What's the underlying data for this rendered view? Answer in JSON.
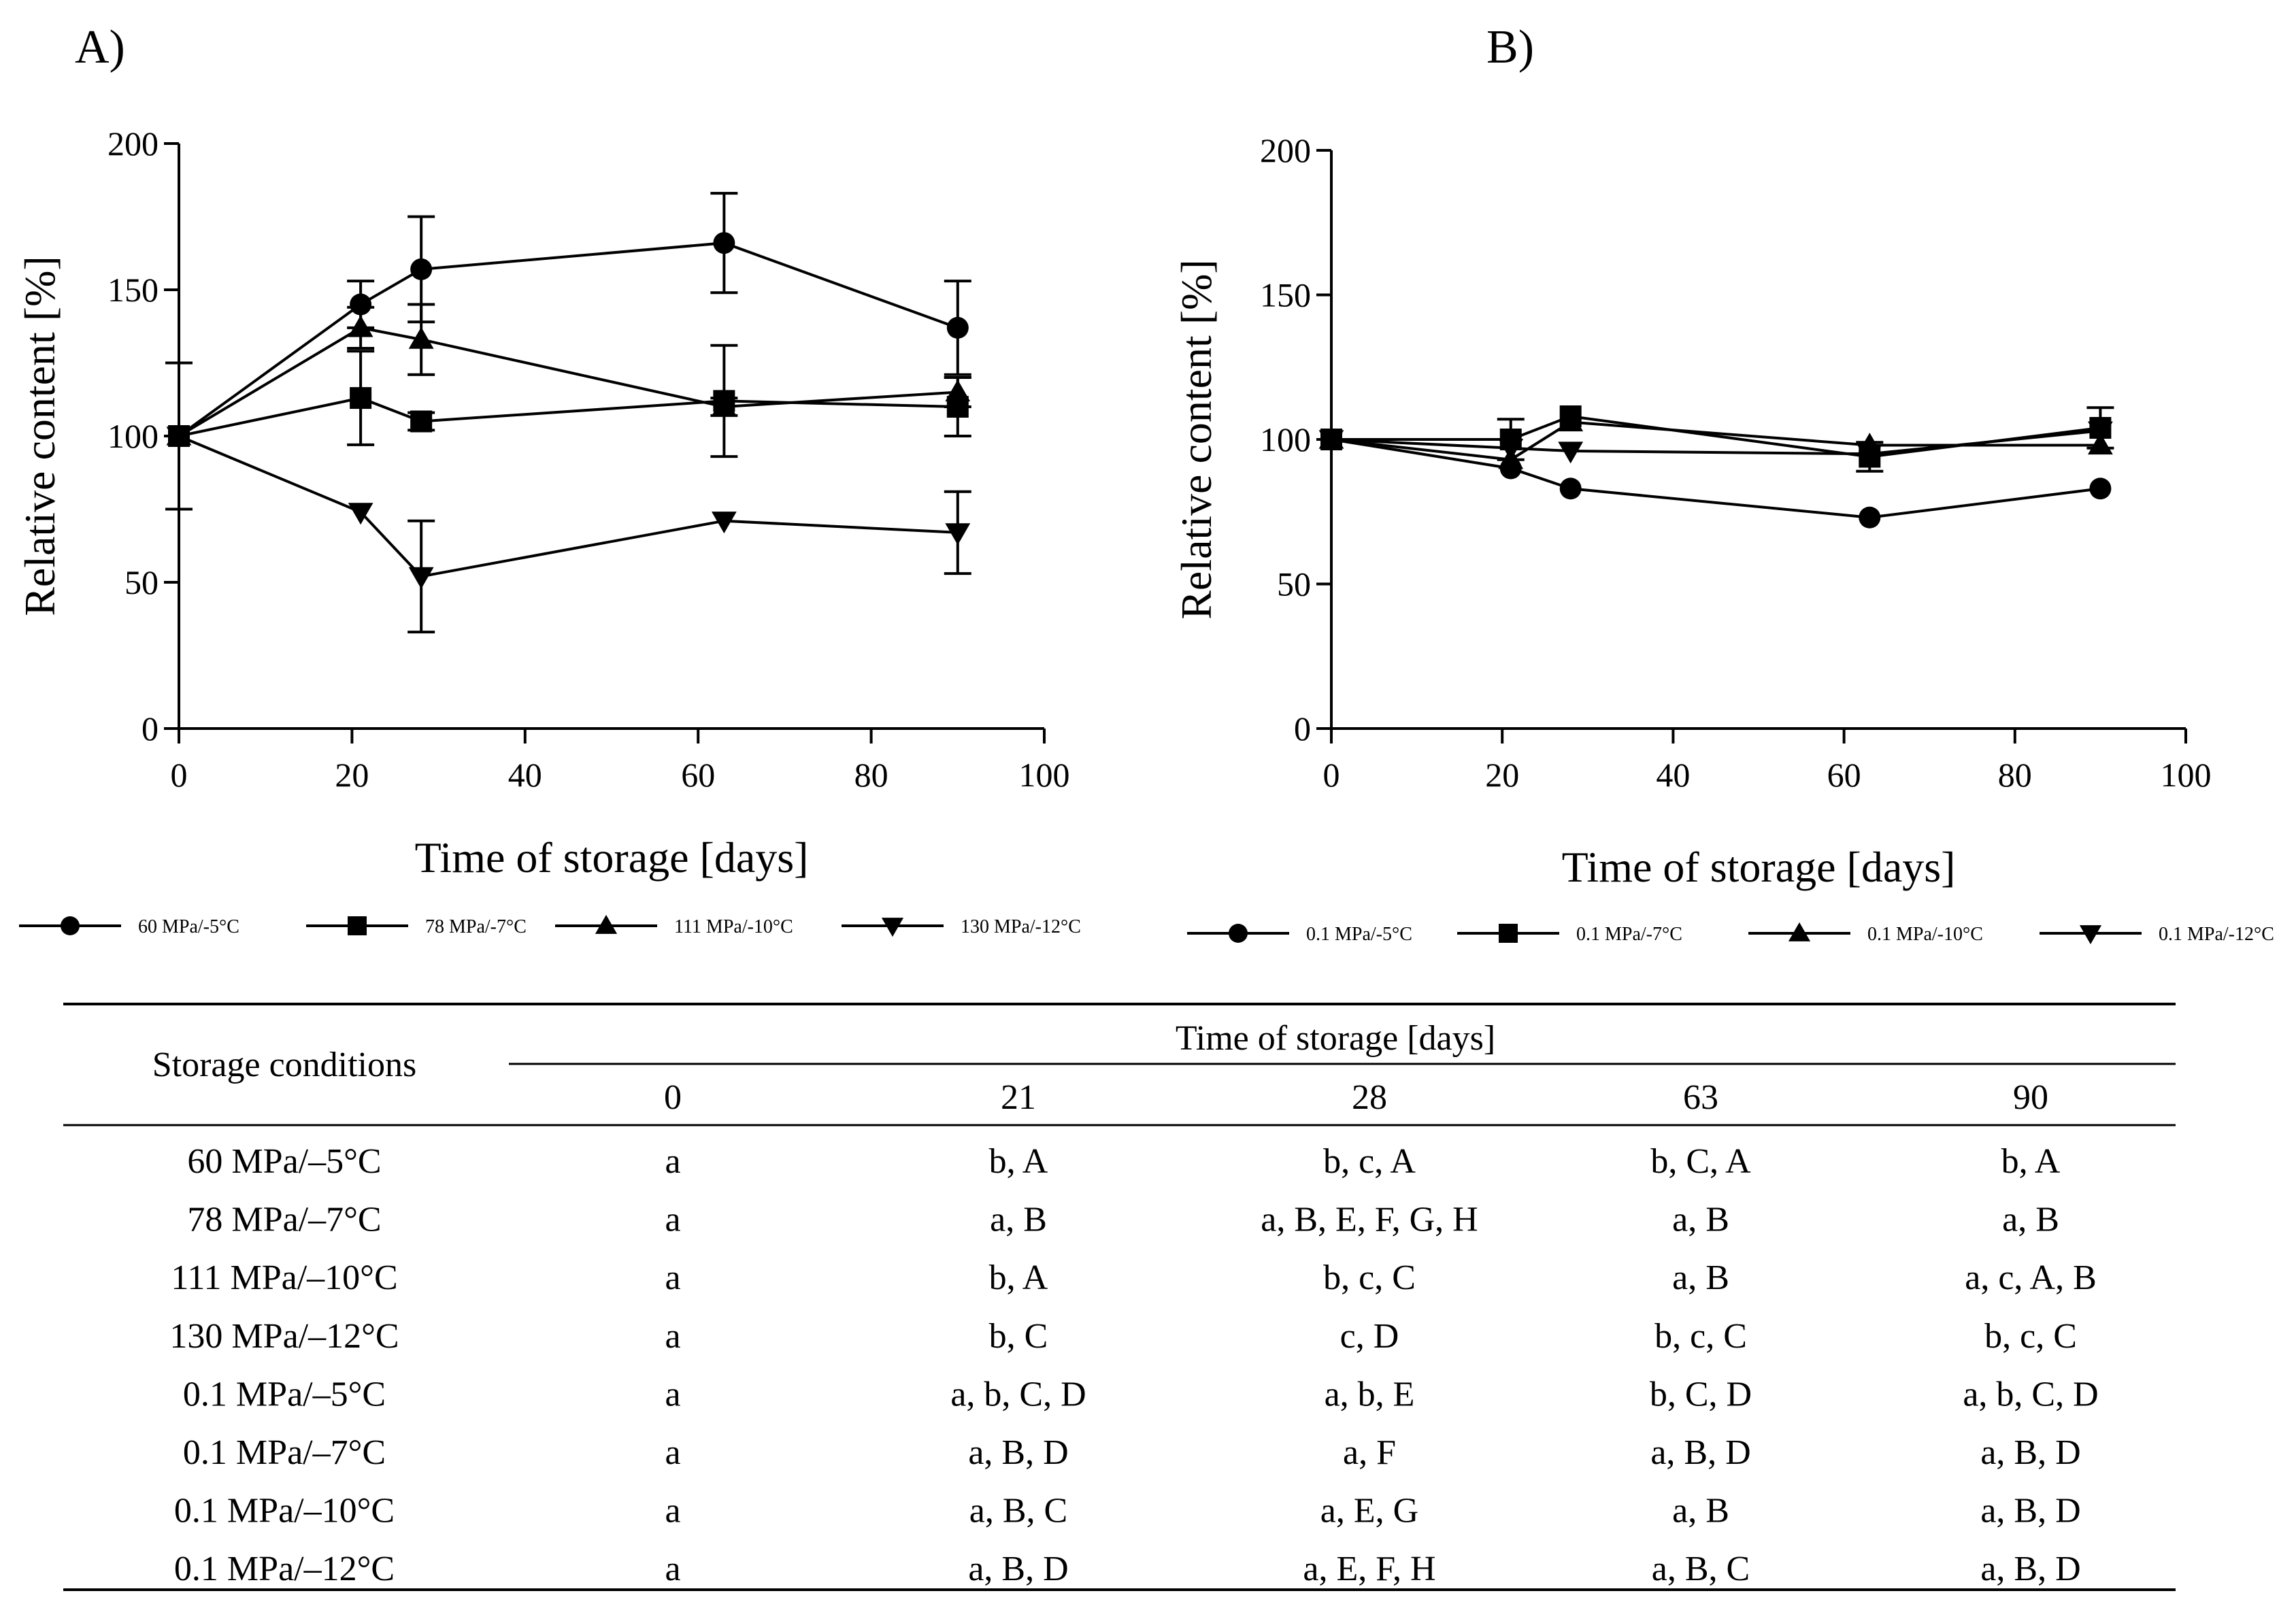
{
  "chart_data": [
    {
      "type": "line",
      "panel_label": "A)",
      "xlabel": "Time of storage [days]",
      "ylabel": "Relative content [%]",
      "xlim": [
        0,
        100
      ],
      "ylim": [
        0,
        200
      ],
      "xticks": [
        "0",
        "20",
        "40",
        "60",
        "80",
        "100"
      ],
      "yticks": [
        "0",
        "50",
        "100",
        "150",
        "200"
      ],
      "legend_position": "below",
      "x": [
        0,
        21,
        28,
        63,
        90
      ],
      "series": [
        {
          "name": "60 MPa/-5°C",
          "marker": "circle",
          "values": [
            100,
            145,
            157,
            166,
            137
          ],
          "errors": [
            25,
            8,
            18,
            17,
            16
          ]
        },
        {
          "name": "78 MPa/-7°C",
          "marker": "square",
          "values": [
            100,
            113,
            105,
            112,
            110
          ],
          "errors": [
            25,
            16,
            3,
            19,
            10
          ]
        },
        {
          "name": "111 MPa/-10°C",
          "marker": "triangle-up",
          "values": [
            100,
            137,
            133,
            110,
            115
          ],
          "errors": [
            25,
            7,
            12,
            3,
            5
          ]
        },
        {
          "name": "130 MPa/-12°C",
          "marker": "triangle-down",
          "values": [
            100,
            74,
            52,
            71,
            67
          ],
          "errors": [
            25,
            0,
            19,
            0,
            14
          ]
        }
      ]
    },
    {
      "type": "line",
      "panel_label": "B)",
      "xlabel": "Time of storage [days]",
      "ylabel": "Relative content [%]",
      "xlim": [
        0,
        100
      ],
      "ylim": [
        0,
        200
      ],
      "xticks": [
        "0",
        "20",
        "40",
        "60",
        "80",
        "100"
      ],
      "yticks": [
        "0",
        "50",
        "100",
        "150",
        "200"
      ],
      "legend_position": "below",
      "x": [
        0,
        21,
        28,
        63,
        90
      ],
      "series": [
        {
          "name": "0.1 MPa/-5°C",
          "marker": "circle",
          "values": [
            100,
            90,
            83,
            73,
            83
          ],
          "errors": [
            0,
            0,
            0,
            0,
            0
          ]
        },
        {
          "name": "0.1 MPa/-7°C",
          "marker": "square",
          "values": [
            100,
            100,
            108,
            94,
            104
          ],
          "errors": [
            0,
            7,
            0,
            5,
            7
          ]
        },
        {
          "name": "0.1 MPa/-10°C",
          "marker": "triangle-up",
          "values": [
            100,
            93,
            106,
            98,
            98
          ],
          "errors": [
            0,
            0,
            0,
            0,
            0
          ]
        },
        {
          "name": "0.1 MPa/-12°C",
          "marker": "triangle-down",
          "values": [
            100,
            97,
            96,
            95,
            103
          ],
          "errors": [
            0,
            0,
            0,
            0,
            0
          ]
        }
      ]
    },
    {
      "type": "table",
      "row_header": "Storage conditions",
      "group_header": "Time of storage [days]",
      "columns": [
        "0",
        "21",
        "28",
        "63",
        "90"
      ],
      "rows": [
        {
          "condition": "60 MPa/–5°C",
          "cells": [
            "a",
            "b, A",
            "b, c, A",
            "b, C, A",
            "b, A"
          ]
        },
        {
          "condition": "78 MPa/–7°C",
          "cells": [
            "a",
            "a, B",
            "a, B, E, F, G, H",
            "a, B",
            "a, B"
          ]
        },
        {
          "condition": "111 MPa/–10°C",
          "cells": [
            "a",
            "b, A",
            "b, c, C",
            "a, B",
            "a, c, A, B"
          ]
        },
        {
          "condition": "130 MPa/–12°C",
          "cells": [
            "a",
            "b, C",
            "c, D",
            "b, c, C",
            "b, c, C"
          ]
        },
        {
          "condition": "0.1 MPa/–5°C",
          "cells": [
            "a",
            "a, b, C, D",
            "a, b, E",
            "b, C, D",
            "a, b, C, D"
          ]
        },
        {
          "condition": "0.1 MPa/–7°C",
          "cells": [
            "a",
            "a, B, D",
            "a, F",
            "a, B, D",
            "a, B, D"
          ]
        },
        {
          "condition": "0.1 MPa/–10°C",
          "cells": [
            "a",
            "a, B, C",
            "a, E, G",
            "a, B",
            "a, B, D"
          ]
        },
        {
          "condition": "0.1 MPa/–12°C",
          "cells": [
            "a",
            "a, B, D",
            "a, E, F, H",
            "a, B, C",
            "a, B, D"
          ]
        }
      ]
    }
  ]
}
